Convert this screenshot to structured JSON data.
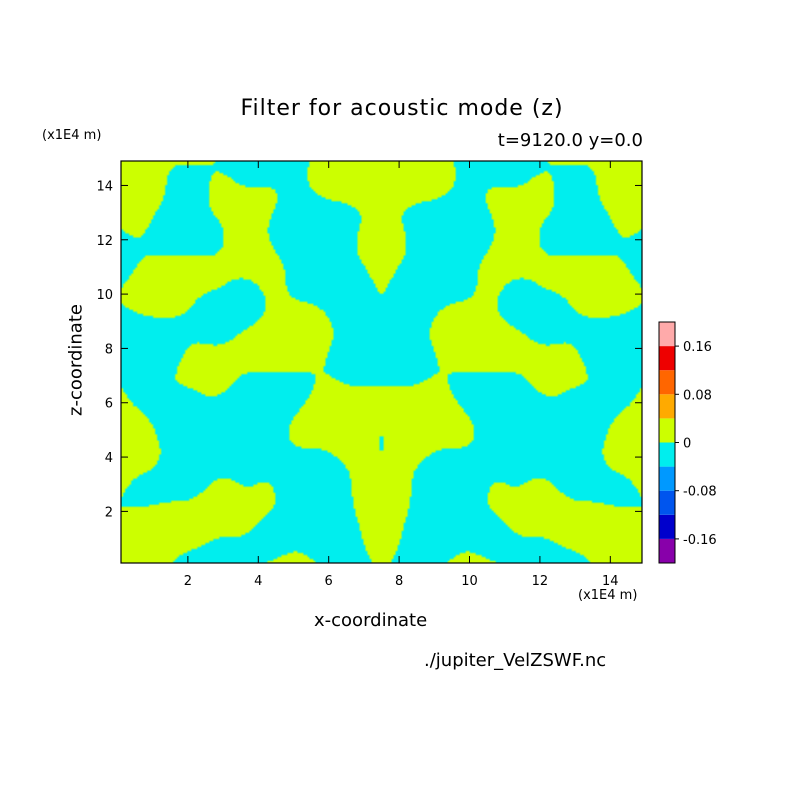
{
  "chart_data": {
    "type": "heatmap",
    "title": "Filter for acoustic mode (z)",
    "subtitle": "t=9120.0 y=0.0",
    "xlabel": "x-coordinate",
    "ylabel": "z-coordinate",
    "x_unit": "(x1E4 m)",
    "y_unit": "(x1E4 m)",
    "xlim": [
      0.1,
      14.9
    ],
    "ylim": [
      0.1,
      14.9
    ],
    "xticks": [
      2,
      4,
      6,
      8,
      10,
      12,
      14
    ],
    "yticks": [
      2,
      4,
      6,
      8,
      10,
      12,
      14
    ],
    "colorbar": {
      "levels": [
        -0.2,
        -0.16,
        -0.12,
        -0.08,
        -0.04,
        0,
        0.04,
        0.08,
        0.12,
        0.16,
        0.2
      ],
      "colors": [
        "#8800aa",
        "#0000cc",
        "#0055ee",
        "#0099ff",
        "#00eeee",
        "#ccff00",
        "#ffaa00",
        "#ff6600",
        "#ee0000",
        "#ffaaaa"
      ],
      "tick_labels": [
        "0.16",
        "0.08",
        "0",
        "-0.08",
        "-0.16"
      ],
      "tick_values": [
        0.16,
        0.08,
        0,
        -0.08,
        -0.16
      ]
    },
    "dominant_field_colors": {
      "negative": "#00eeee",
      "positive": "#ccff00"
    }
  },
  "source_file": "./jupiter_VelZSWF.nc"
}
